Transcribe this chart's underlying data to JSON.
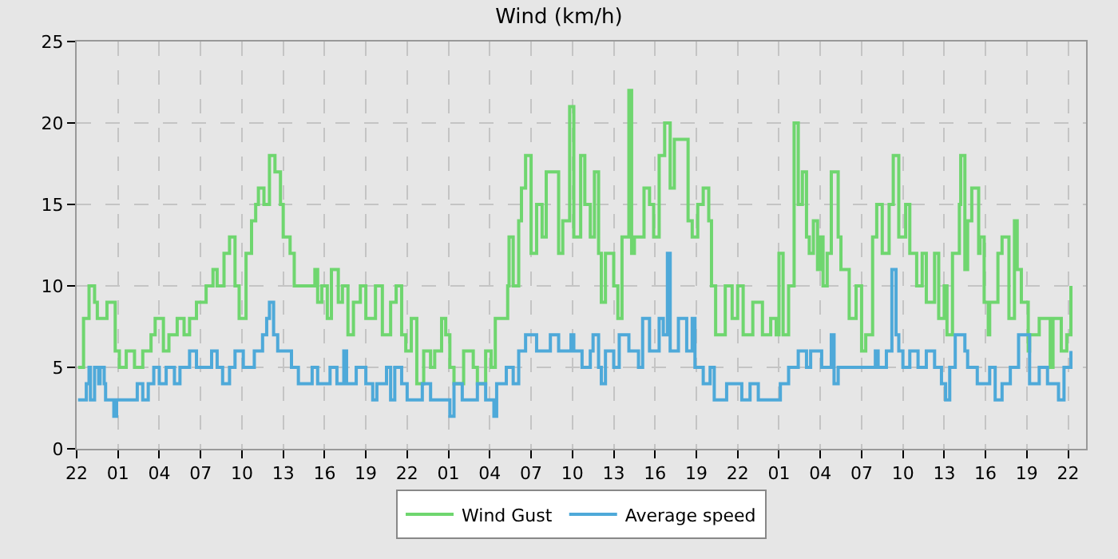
{
  "chart_data": {
    "type": "step",
    "title": "Wind (km/h)",
    "xlim": [
      "--01-01T22:00",
      "--01-04T23:18"
    ],
    "xticks": [
      {
        "value": "--01-01T22:00",
        "label": "22"
      },
      {
        "value": "--01-02T01:00",
        "label": "01"
      },
      {
        "value": "--01-02T04:00",
        "label": "04"
      },
      {
        "value": "--01-02T07:00",
        "label": "07"
      },
      {
        "value": "--01-02T10:00",
        "label": "10"
      },
      {
        "value": "--01-02T13:00",
        "label": "13"
      },
      {
        "value": "--01-02T16:00",
        "label": "16"
      },
      {
        "value": "--01-02T19:00",
        "label": "19"
      },
      {
        "value": "--01-02T22:00",
        "label": "22"
      },
      {
        "value": "--01-03T01:00",
        "label": "01"
      },
      {
        "value": "--01-03T04:00",
        "label": "04"
      },
      {
        "value": "--01-03T07:00",
        "label": "07"
      },
      {
        "value": "--01-03T10:00",
        "label": "10"
      },
      {
        "value": "--01-03T13:00",
        "label": "13"
      },
      {
        "value": "--01-03T16:00",
        "label": "16"
      },
      {
        "value": "--01-03T19:00",
        "label": "19"
      },
      {
        "value": "--01-03T22:00",
        "label": "22"
      },
      {
        "value": "--01-04T01:00",
        "label": "01"
      },
      {
        "value": "--01-04T04:00",
        "label": "04"
      },
      {
        "value": "--01-04T07:00",
        "label": "07"
      },
      {
        "value": "--01-04T10:00",
        "label": "10"
      },
      {
        "value": "--01-04T13:00",
        "label": "13"
      },
      {
        "value": "--01-04T16:00",
        "label": "16"
      },
      {
        "value": "--01-04T19:00",
        "label": "19"
      },
      {
        "value": "--01-04T22:00",
        "label": "22"
      }
    ],
    "ylim": [
      0,
      25
    ],
    "yticks": [
      0,
      5,
      10,
      15,
      20,
      25
    ],
    "grid": true,
    "legend": "bottom",
    "marker": "none",
    "line_style": "solid",
    "series": [
      {
        "name": "Wind Gust",
        "color": "#6fd66f",
        "x": [
          "--01-01T22:06",
          "--01-01T22:30",
          "--01-01T22:54",
          "--01-01T23:18",
          "--01-01T23:30",
          "--01-02T00:12",
          "--01-02T00:48",
          "--01-02T01:06",
          "--01-02T01:36",
          "--01-02T02:12",
          "--01-02T02:48",
          "--01-02T03:24",
          "--01-02T03:42",
          "--01-02T04:18",
          "--01-02T04:42",
          "--01-02T05:18",
          "--01-02T05:48",
          "--01-02T06:12",
          "--01-02T06:42",
          "--01-02T07:06",
          "--01-02T07:24",
          "--01-02T07:54",
          "--01-02T08:12",
          "--01-02T08:42",
          "--01-02T09:06",
          "--01-02T09:30",
          "--01-02T09:48",
          "--01-02T10:18",
          "--01-02T10:42",
          "--01-02T11:00",
          "--01-02T11:12",
          "--01-02T11:36",
          "--01-02T12:00",
          "--01-02T12:24",
          "--01-02T12:48",
          "--01-02T13:00",
          "--01-02T13:30",
          "--01-02T13:48",
          "--01-02T14:36",
          "--01-02T15:18",
          "--01-02T15:30",
          "--01-02T15:48",
          "--01-02T16:12",
          "--01-02T16:30",
          "--01-02T17:00",
          "--01-02T17:18",
          "--01-02T17:42",
          "--01-02T18:06",
          "--01-02T18:36",
          "--01-02T19:00",
          "--01-02T19:42",
          "--01-02T20:12",
          "--01-02T20:48",
          "--01-02T21:12",
          "--01-02T21:36",
          "--01-02T21:54",
          "--01-02T22:18",
          "--01-02T22:42",
          "--01-02T23:12",
          "--01-02T23:42",
          "--01-03T00:00",
          "--01-03T00:30",
          "--01-03T00:48",
          "--01-03T01:06",
          "--01-03T01:24",
          "--01-03T02:06",
          "--01-03T02:48",
          "--01-03T03:06",
          "--01-03T03:42",
          "--01-03T04:06",
          "--01-03T04:24",
          "--01-03T05:00",
          "--01-03T05:18",
          "--01-03T05:24",
          "--01-03T05:42",
          "--01-03T06:06",
          "--01-03T06:18",
          "--01-03T06:36",
          "--01-03T07:00",
          "--01-03T07:24",
          "--01-03T07:48",
          "--01-03T08:06",
          "--01-03T08:30",
          "--01-03T09:00",
          "--01-03T09:18",
          "--01-03T09:48",
          "--01-03T10:06",
          "--01-03T10:36",
          "--01-03T10:54",
          "--01-03T11:18",
          "--01-03T11:36",
          "--01-03T11:54",
          "--01-03T12:06",
          "--01-03T12:24",
          "--01-03T13:00",
          "--01-03T13:18",
          "--01-03T13:36",
          "--01-03T14:06",
          "--01-03T14:18",
          "--01-03T14:30",
          "--01-03T15:12",
          "--01-03T15:36",
          "--01-03T15:54",
          "--01-03T16:18",
          "--01-03T16:42",
          "--01-03T17:06",
          "--01-03T17:24",
          "--01-03T18:00",
          "--01-03T18:24",
          "--01-03T18:42",
          "--01-03T19:06",
          "--01-03T19:30",
          "--01-03T19:54",
          "--01-03T20:06",
          "--01-03T20:24",
          "--01-03T21:06",
          "--01-03T21:36",
          "--01-03T22:00",
          "--01-03T22:24",
          "--01-03T23:06",
          "--01-03T23:30",
          "--01-03T23:48",
          "--01-04T00:24",
          "--01-04T00:48",
          "--01-04T01:00",
          "--01-04T01:18",
          "--01-04T01:42",
          "--01-04T02:06",
          "--01-04T02:24",
          "--01-04T02:42",
          "--01-04T03:00",
          "--01-04T03:12",
          "--01-04T03:30",
          "--01-04T03:48",
          "--01-04T04:00",
          "--01-04T04:12",
          "--01-04T04:30",
          "--01-04T04:48",
          "--01-04T05:12",
          "--01-04T05:18",
          "--01-04T05:30",
          "--01-04T06:06",
          "--01-04T06:36",
          "--01-04T07:00",
          "--01-04T07:18",
          "--01-04T07:48",
          "--01-04T08:06",
          "--01-04T08:30",
          "--01-04T09:00",
          "--01-04T09:18",
          "--01-04T09:42",
          "--01-04T10:12",
          "--01-04T10:30",
          "--01-04T11:00",
          "--01-04T11:24",
          "--01-04T11:42",
          "--01-04T12:18",
          "--01-04T12:36",
          "--01-04T13:00",
          "--01-04T13:12",
          "--01-04T13:36",
          "--01-04T14:06",
          "--01-04T14:12",
          "--01-04T14:30",
          "--01-04T14:42",
          "--01-04T15:00",
          "--01-04T15:30",
          "--01-04T15:36",
          "--01-04T15:54",
          "--01-04T16:12",
          "--01-04T16:18",
          "--01-04T16:54",
          "--01-04T17:12",
          "--01-04T17:42",
          "--01-04T18:06",
          "--01-04T18:18",
          "--01-04T18:36",
          "--01-04T19:06",
          "--01-04T19:12",
          "--01-04T19:54",
          "--01-04T20:42",
          "--01-04T20:54",
          "--01-04T21:30",
          "--01-04T21:54",
          "--01-04T22:12"
        ],
        "values": [
          5,
          8,
          10,
          9,
          8,
          9,
          6,
          5,
          6,
          5,
          6,
          7,
          8,
          6,
          7,
          8,
          7,
          8,
          9,
          9,
          10,
          11,
          10,
          12,
          13,
          10,
          8,
          12,
          14,
          15,
          16,
          15,
          18,
          17,
          15,
          13,
          12,
          10,
          10,
          11,
          9,
          10,
          8,
          11,
          9,
          10,
          7,
          9,
          10,
          8,
          10,
          7,
          9,
          10,
          7,
          6,
          8,
          4,
          6,
          5,
          6,
          8,
          7,
          5,
          4,
          6,
          5,
          4,
          6,
          5,
          8,
          8,
          10,
          13,
          10,
          14,
          16,
          18,
          12,
          15,
          13,
          17,
          17,
          12,
          14,
          21,
          13,
          18,
          15,
          13,
          17,
          12,
          9,
          12,
          10,
          8,
          13,
          22,
          12,
          13,
          16,
          15,
          13,
          18,
          20,
          16,
          19,
          19,
          14,
          13,
          15,
          16,
          14,
          10,
          7,
          10,
          8,
          10,
          7,
          9,
          9,
          7,
          8,
          7,
          12,
          7,
          10,
          20,
          15,
          17,
          13,
          12,
          14,
          11,
          13,
          10,
          12,
          17,
          17,
          13,
          11,
          8,
          10,
          6,
          7,
          13,
          15,
          12,
          15,
          18,
          13,
          15,
          12,
          10,
          12,
          9,
          12,
          8,
          10,
          7,
          12,
          15,
          18,
          11,
          14,
          16,
          12,
          13,
          9,
          7,
          9,
          12,
          13,
          8,
          14,
          11,
          9,
          6,
          7,
          8,
          5,
          8,
          6,
          7,
          10
        ]
      },
      {
        "name": "Average speed",
        "color": "#4ea9d9",
        "x": [
          "--01-01T22:06",
          "--01-01T22:42",
          "--01-01T22:54",
          "--01-01T23:00",
          "--01-01T23:18",
          "--01-01T23:36",
          "--01-01T23:42",
          "--01-02T00:00",
          "--01-02T00:06",
          "--01-02T00:42",
          "--01-02T00:54",
          "--01-02T02:24",
          "--01-02T02:48",
          "--01-02T03:12",
          "--01-02T03:36",
          "--01-02T04:00",
          "--01-02T04:30",
          "--01-02T05:06",
          "--01-02T05:30",
          "--01-02T06:12",
          "--01-02T06:42",
          "--01-02T07:48",
          "--01-02T08:12",
          "--01-02T08:36",
          "--01-02T09:06",
          "--01-02T09:30",
          "--01-02T10:06",
          "--01-02T10:54",
          "--01-02T11:30",
          "--01-02T11:48",
          "--01-02T12:00",
          "--01-02T12:18",
          "--01-02T12:36",
          "--01-02T13:12",
          "--01-02T13:36",
          "--01-02T14:06",
          "--01-02T15:06",
          "--01-02T15:30",
          "--01-02T16:24",
          "--01-02T16:54",
          "--01-02T17:24",
          "--01-02T17:36",
          "--01-02T18:18",
          "--01-02T19:00",
          "--01-02T19:30",
          "--01-02T19:48",
          "--01-02T20:30",
          "--01-02T20:48",
          "--01-02T21:06",
          "--01-02T21:36",
          "--01-02T22:00",
          "--01-02T23:06",
          "--01-02T23:42",
          "--01-03T01:06",
          "--01-03T01:24",
          "--01-03T02:00",
          "--01-03T03:06",
          "--01-03T03:42",
          "--01-03T04:18",
          "--01-03T04:30",
          "--01-03T05:12",
          "--01-03T05:42",
          "--01-03T06:06",
          "--01-03T06:36",
          "--01-03T07:24",
          "--01-03T08:24",
          "--01-03T09:00",
          "--01-03T09:54",
          "--01-03T10:06",
          "--01-03T10:42",
          "--01-03T11:18",
          "--01-03T11:30",
          "--01-03T11:54",
          "--01-03T12:06",
          "--01-03T12:24",
          "--01-03T13:00",
          "--01-03T13:24",
          "--01-03T14:06",
          "--01-03T14:48",
          "--01-03T15:06",
          "--01-03T15:36",
          "--01-03T16:18",
          "--01-03T16:36",
          "--01-03T16:54",
          "--01-03T17:06",
          "--01-03T17:42",
          "--01-03T18:18",
          "--01-03T18:42",
          "--01-03T18:54",
          "--01-03T19:30",
          "--01-03T20:00",
          "--01-03T20:18",
          "--01-03T21:12",
          "--01-03T22:18",
          "--01-03T22:54",
          "--01-03T23:30",
          "--01-04T01:06",
          "--01-04T01:42",
          "--01-04T02:24",
          "--01-04T03:00",
          "--01-04T03:18",
          "--01-04T04:06",
          "--01-04T04:48",
          "--01-04T05:00",
          "--01-04T05:18",
          "--01-04T07:00",
          "--01-04T08:00",
          "--01-04T08:12",
          "--01-04T08:48",
          "--01-04T09:12",
          "--01-04T09:30",
          "--01-04T09:42",
          "--01-04T10:00",
          "--01-04T10:30",
          "--01-04T11:06",
          "--01-04T11:42",
          "--01-04T12:18",
          "--01-04T12:48",
          "--01-04T13:06",
          "--01-04T13:24",
          "--01-04T13:48",
          "--01-04T14:30",
          "--01-04T14:42",
          "--01-04T15:24",
          "--01-04T16:18",
          "--01-04T16:42",
          "--01-04T17:12",
          "--01-04T17:48",
          "--01-04T18:24",
          "--01-04T19:12",
          "--01-04T19:54",
          "--01-04T20:30",
          "--01-04T21:00",
          "--01-04T21:18",
          "--01-04T21:42",
          "--01-04T22:12"
        ],
        "values": [
          3,
          4,
          5,
          3,
          5,
          4,
          5,
          4,
          3,
          2,
          3,
          4,
          3,
          4,
          5,
          4,
          5,
          4,
          5,
          6,
          5,
          6,
          5,
          4,
          5,
          6,
          5,
          6,
          7,
          8,
          9,
          7,
          6,
          6,
          5,
          4,
          5,
          4,
          5,
          4,
          6,
          4,
          5,
          4,
          3,
          4,
          5,
          3,
          5,
          4,
          3,
          4,
          3,
          2,
          4,
          3,
          4,
          3,
          2,
          4,
          5,
          4,
          6,
          7,
          6,
          7,
          6,
          7,
          6,
          5,
          6,
          7,
          5,
          4,
          6,
          5,
          7,
          6,
          5,
          8,
          6,
          8,
          7,
          12,
          6,
          8,
          6,
          8,
          5,
          4,
          5,
          3,
          4,
          3,
          4,
          3,
          4,
          5,
          6,
          5,
          6,
          5,
          7,
          4,
          5,
          5,
          6,
          5,
          6,
          11,
          7,
          6,
          5,
          6,
          5,
          6,
          5,
          4,
          3,
          5,
          7,
          6,
          5,
          4,
          5,
          3,
          4,
          5,
          7,
          4,
          5,
          4,
          4,
          3,
          5,
          6
        ]
      }
    ]
  }
}
